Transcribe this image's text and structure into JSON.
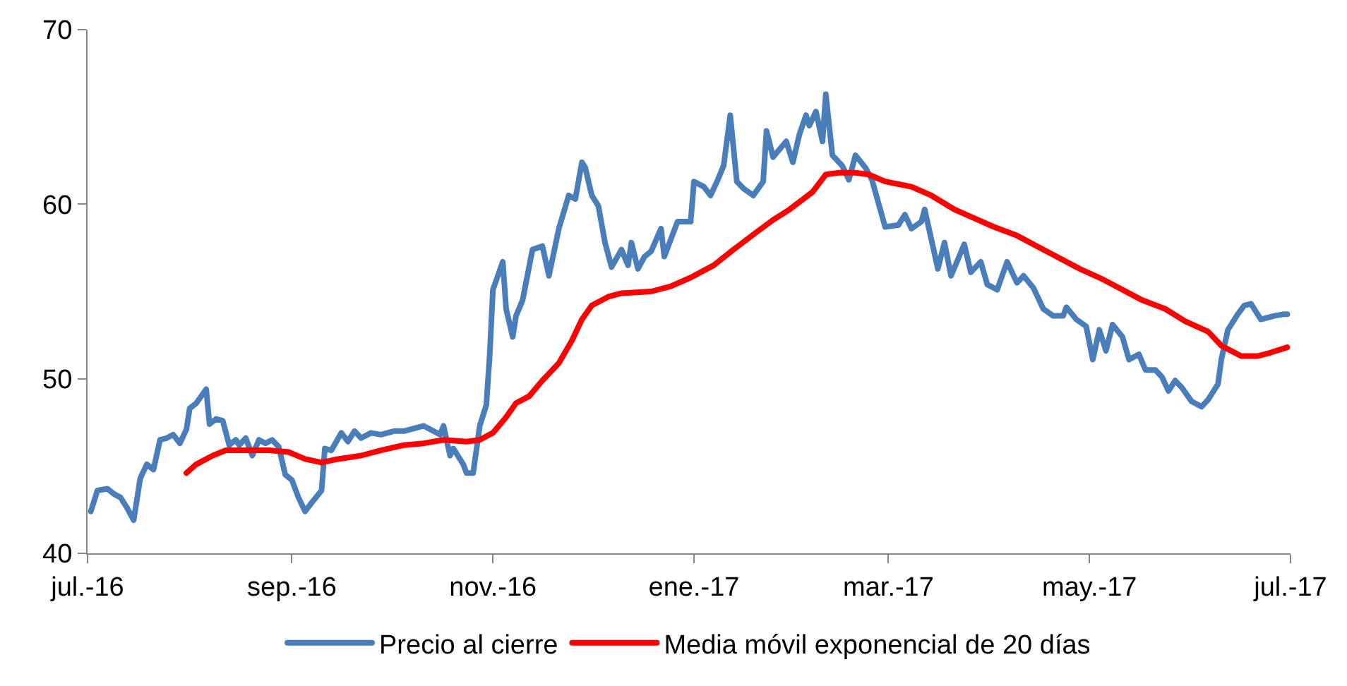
{
  "chart_data": {
    "type": "line",
    "xlim": [
      "2016-07-01",
      "2017-07-01"
    ],
    "xticks": [
      {
        "value": "2016-07-01",
        "label": "jul.-16"
      },
      {
        "value": "2016-09-01",
        "label": "sep.-16"
      },
      {
        "value": "2016-11-01",
        "label": "nov.-16"
      },
      {
        "value": "2017-01-01",
        "label": "ene.-17"
      },
      {
        "value": "2017-03-01",
        "label": "mar.-17"
      },
      {
        "value": "2017-05-01",
        "label": "may.-17"
      },
      {
        "value": "2017-07-01",
        "label": "jul.-17"
      }
    ],
    "ylim": [
      40,
      70
    ],
    "yticks": [
      40,
      50,
      60,
      70
    ],
    "grid": false,
    "legend": "bottom",
    "marker": "none",
    "line_style": "solid",
    "series": [
      {
        "name": "Precio al cierre",
        "color": "#4a7ebb",
        "x": [
          "2016-07-02",
          "2016-07-04",
          "2016-07-07",
          "2016-07-09",
          "2016-07-11",
          "2016-07-13",
          "2016-07-15",
          "2016-07-17",
          "2016-07-19",
          "2016-07-21",
          "2016-07-23",
          "2016-07-25",
          "2016-07-27",
          "2016-07-29",
          "2016-07-31",
          "2016-08-01",
          "2016-08-03",
          "2016-08-06",
          "2016-08-07",
          "2016-08-09",
          "2016-08-11",
          "2016-08-13",
          "2016-08-15",
          "2016-08-16",
          "2016-08-18",
          "2016-08-20",
          "2016-08-22",
          "2016-08-24",
          "2016-08-26",
          "2016-08-28",
          "2016-08-30",
          "2016-09-01",
          "2016-09-03",
          "2016-09-05",
          "2016-09-07",
          "2016-09-10",
          "2016-09-11",
          "2016-09-13",
          "2016-09-16",
          "2016-09-18",
          "2016-09-20",
          "2016-09-22",
          "2016-09-25",
          "2016-09-28",
          "2016-10-02",
          "2016-10-05",
          "2016-10-11",
          "2016-10-16",
          "2016-10-17",
          "2016-10-19",
          "2016-10-20",
          "2016-10-23",
          "2016-10-24",
          "2016-10-26",
          "2016-10-28",
          "2016-10-30",
          "2016-10-31",
          "2016-11-01",
          "2016-11-04",
          "2016-11-05",
          "2016-11-07",
          "2016-11-08",
          "2016-11-10",
          "2016-11-13",
          "2016-11-16",
          "2016-11-18",
          "2016-11-21",
          "2016-11-24",
          "2016-11-26",
          "2016-11-28",
          "2016-11-29",
          "2016-12-01",
          "2016-12-03",
          "2016-12-05",
          "2016-12-07",
          "2016-12-10",
          "2016-12-12",
          "2016-12-13",
          "2016-12-15",
          "2016-12-17",
          "2016-12-19",
          "2016-12-22",
          "2016-12-23",
          "2016-12-25",
          "2016-12-27",
          "2016-12-31",
          "2017-01-01",
          "2017-01-04",
          "2017-01-06",
          "2017-01-08",
          "2017-01-10",
          "2017-01-12",
          "2017-01-14",
          "2017-01-16",
          "2017-01-19",
          "2017-01-22",
          "2017-01-23",
          "2017-01-25",
          "2017-01-29",
          "2017-01-31",
          "2017-02-02",
          "2017-02-04",
          "2017-02-05",
          "2017-02-07",
          "2017-02-09",
          "2017-02-10",
          "2017-02-12",
          "2017-02-15",
          "2017-02-17",
          "2017-02-19",
          "2017-02-22",
          "2017-02-24",
          "2017-02-28",
          "2017-03-04",
          "2017-03-06",
          "2017-03-08",
          "2017-03-11",
          "2017-03-12",
          "2017-03-16",
          "2017-03-18",
          "2017-03-20",
          "2017-03-24",
          "2017-03-26",
          "2017-03-29",
          "2017-03-31",
          "2017-04-03",
          "2017-04-06",
          "2017-04-09",
          "2017-04-11",
          "2017-04-14",
          "2017-04-17",
          "2017-04-20",
          "2017-04-23",
          "2017-04-24",
          "2017-04-27",
          "2017-04-30",
          "2017-05-02",
          "2017-05-04",
          "2017-05-06",
          "2017-05-08",
          "2017-05-11",
          "2017-05-13",
          "2017-05-16",
          "2017-05-18",
          "2017-05-21",
          "2017-05-23",
          "2017-05-25",
          "2017-05-27",
          "2017-05-29",
          "2017-06-01",
          "2017-06-04",
          "2017-06-06",
          "2017-06-09",
          "2017-06-10",
          "2017-06-12",
          "2017-06-15",
          "2017-06-17",
          "2017-06-19",
          "2017-06-22",
          "2017-06-26",
          "2017-06-29",
          "2017-06-30"
        ],
        "values": [
          42.4,
          43.6,
          43.7,
          43.4,
          43.2,
          42.6,
          41.9,
          44.3,
          45.1,
          44.8,
          46.5,
          46.6,
          46.8,
          46.3,
          47.1,
          48.3,
          48.6,
          49.4,
          47.4,
          47.7,
          47.6,
          46.2,
          46.5,
          46.2,
          46.6,
          45.6,
          46.5,
          46.3,
          46.5,
          46.1,
          44.5,
          44.2,
          43.2,
          42.4,
          42.9,
          43.6,
          46.0,
          45.9,
          46.9,
          46.4,
          47.0,
          46.6,
          46.9,
          46.8,
          47.0,
          47.0,
          47.3,
          46.8,
          47.3,
          45.6,
          46.0,
          45.1,
          44.6,
          44.6,
          47.3,
          48.5,
          51.3,
          55.1,
          56.7,
          54.0,
          52.4,
          53.6,
          54.5,
          57.4,
          57.6,
          55.9,
          58.6,
          60.5,
          60.3,
          62.4,
          62.1,
          60.5,
          59.9,
          57.8,
          56.4,
          57.4,
          56.5,
          57.8,
          56.3,
          57.0,
          57.3,
          58.6,
          57.0,
          58.0,
          59.0,
          59.0,
          61.3,
          61.0,
          60.5,
          61.3,
          62.2,
          65.1,
          61.3,
          60.9,
          60.5,
          61.3,
          64.2,
          62.7,
          63.6,
          62.4,
          64.0,
          65.1,
          64.5,
          65.3,
          63.6,
          66.3,
          62.8,
          62.2,
          61.4,
          62.8,
          62.1,
          61.4,
          58.7,
          58.8,
          59.4,
          58.6,
          59.0,
          59.7,
          56.3,
          57.8,
          55.9,
          57.7,
          56.1,
          56.7,
          55.4,
          55.1,
          56.7,
          55.5,
          55.9,
          55.2,
          54.0,
          53.6,
          53.6,
          54.1,
          53.4,
          53.0,
          51.1,
          52.8,
          51.6,
          53.1,
          52.4,
          51.1,
          51.4,
          50.5,
          50.5,
          50.1,
          49.3,
          49.9,
          49.5,
          48.7,
          48.4,
          48.8,
          49.7,
          51.1,
          52.8,
          53.7,
          54.2,
          54.3,
          53.4,
          53.6,
          53.7,
          53.7
        ]
      },
      {
        "name": "Media móvil exponencial de 20 días",
        "color": "#ff0000",
        "x": [
          "2016-07-31",
          "2016-08-03",
          "2016-08-08",
          "2016-08-12",
          "2016-08-18",
          "2016-08-25",
          "2016-08-31",
          "2016-09-05",
          "2016-09-10",
          "2016-09-15",
          "2016-09-22",
          "2016-09-28",
          "2016-10-05",
          "2016-10-11",
          "2016-10-17",
          "2016-10-24",
          "2016-10-28",
          "2016-11-01",
          "2016-11-05",
          "2016-11-08",
          "2016-11-12",
          "2016-11-16",
          "2016-11-21",
          "2016-11-25",
          "2016-11-28",
          "2016-12-01",
          "2016-12-06",
          "2016-12-10",
          "2016-12-19",
          "2016-12-25",
          "2016-12-31",
          "2017-01-07",
          "2017-01-13",
          "2017-01-20",
          "2017-01-25",
          "2017-01-30",
          "2017-02-06",
          "2017-02-10",
          "2017-02-14",
          "2017-02-19",
          "2017-02-23",
          "2017-02-28",
          "2017-03-08",
          "2017-03-14",
          "2017-03-21",
          "2017-03-27",
          "2017-04-02",
          "2017-04-09",
          "2017-04-15",
          "2017-04-22",
          "2017-04-28",
          "2017-05-05",
          "2017-05-11",
          "2017-05-17",
          "2017-05-24",
          "2017-05-30",
          "2017-06-06",
          "2017-06-10",
          "2017-06-16",
          "2017-06-21",
          "2017-06-25",
          "2017-06-30"
        ],
        "values": [
          44.6,
          45.1,
          45.6,
          45.9,
          45.9,
          45.9,
          45.8,
          45.4,
          45.2,
          45.4,
          45.6,
          45.9,
          46.2,
          46.3,
          46.5,
          46.4,
          46.5,
          46.9,
          47.8,
          48.6,
          49.0,
          49.9,
          50.9,
          52.2,
          53.4,
          54.2,
          54.7,
          54.9,
          55.0,
          55.3,
          55.8,
          56.5,
          57.4,
          58.4,
          59.1,
          59.7,
          60.7,
          61.7,
          61.8,
          61.8,
          61.7,
          61.3,
          61.0,
          60.5,
          59.7,
          59.2,
          58.7,
          58.2,
          57.6,
          56.9,
          56.3,
          55.7,
          55.1,
          54.5,
          54.0,
          53.3,
          52.7,
          51.9,
          51.3,
          51.3,
          51.5,
          51.8
        ]
      }
    ]
  }
}
